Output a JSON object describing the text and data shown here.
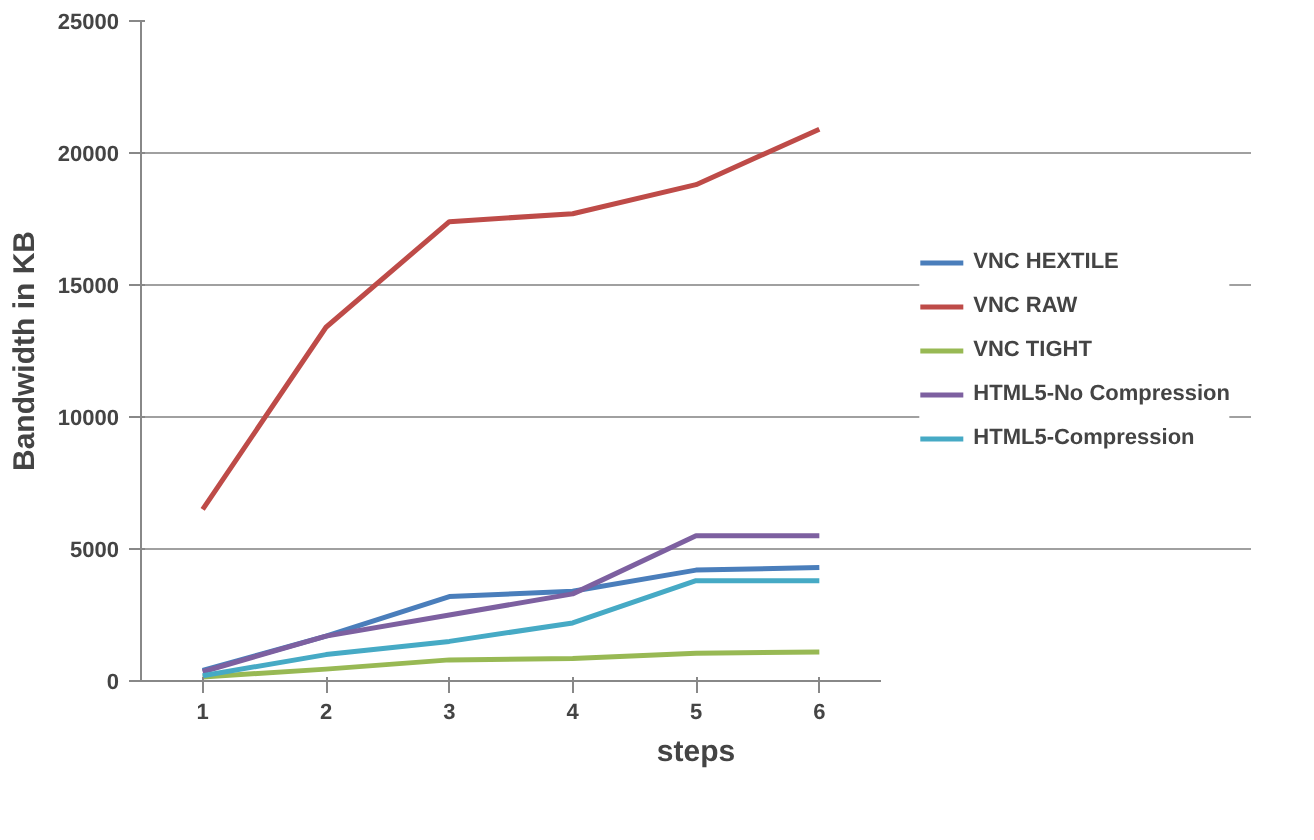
{
  "chart_data": {
    "type": "line",
    "xlabel": "steps",
    "ylabel": "Bandwidth in KB",
    "categories": [
      "1",
      "2",
      "3",
      "4",
      "5",
      "6"
    ],
    "ylim": [
      0,
      25000
    ],
    "yticks": [
      0,
      5000,
      10000,
      15000,
      20000,
      25000
    ],
    "grid": "y",
    "legend": "right",
    "marker": "none",
    "line_style": "solid",
    "series": [
      {
        "name": "VNC HEXTILE",
        "color": "#4a7ebb",
        "values": [
          400,
          1700,
          3200,
          3400,
          4200,
          4300
        ]
      },
      {
        "name": "VNC RAW",
        "color": "#be4b48",
        "values": [
          6500,
          13400,
          17400,
          17700,
          18800,
          20900
        ]
      },
      {
        "name": "VNC TIGHT",
        "color": "#98b954",
        "values": [
          150,
          450,
          800,
          850,
          1050,
          1100
        ]
      },
      {
        "name": "HTML5-No Compression",
        "color": "#7d60a0",
        "values": [
          350,
          1700,
          2500,
          3300,
          5500,
          5500
        ]
      },
      {
        "name": "HTML5-Compression",
        "color": "#46aac5",
        "values": [
          200,
          1000,
          1500,
          2200,
          3800,
          3800
        ]
      }
    ]
  }
}
